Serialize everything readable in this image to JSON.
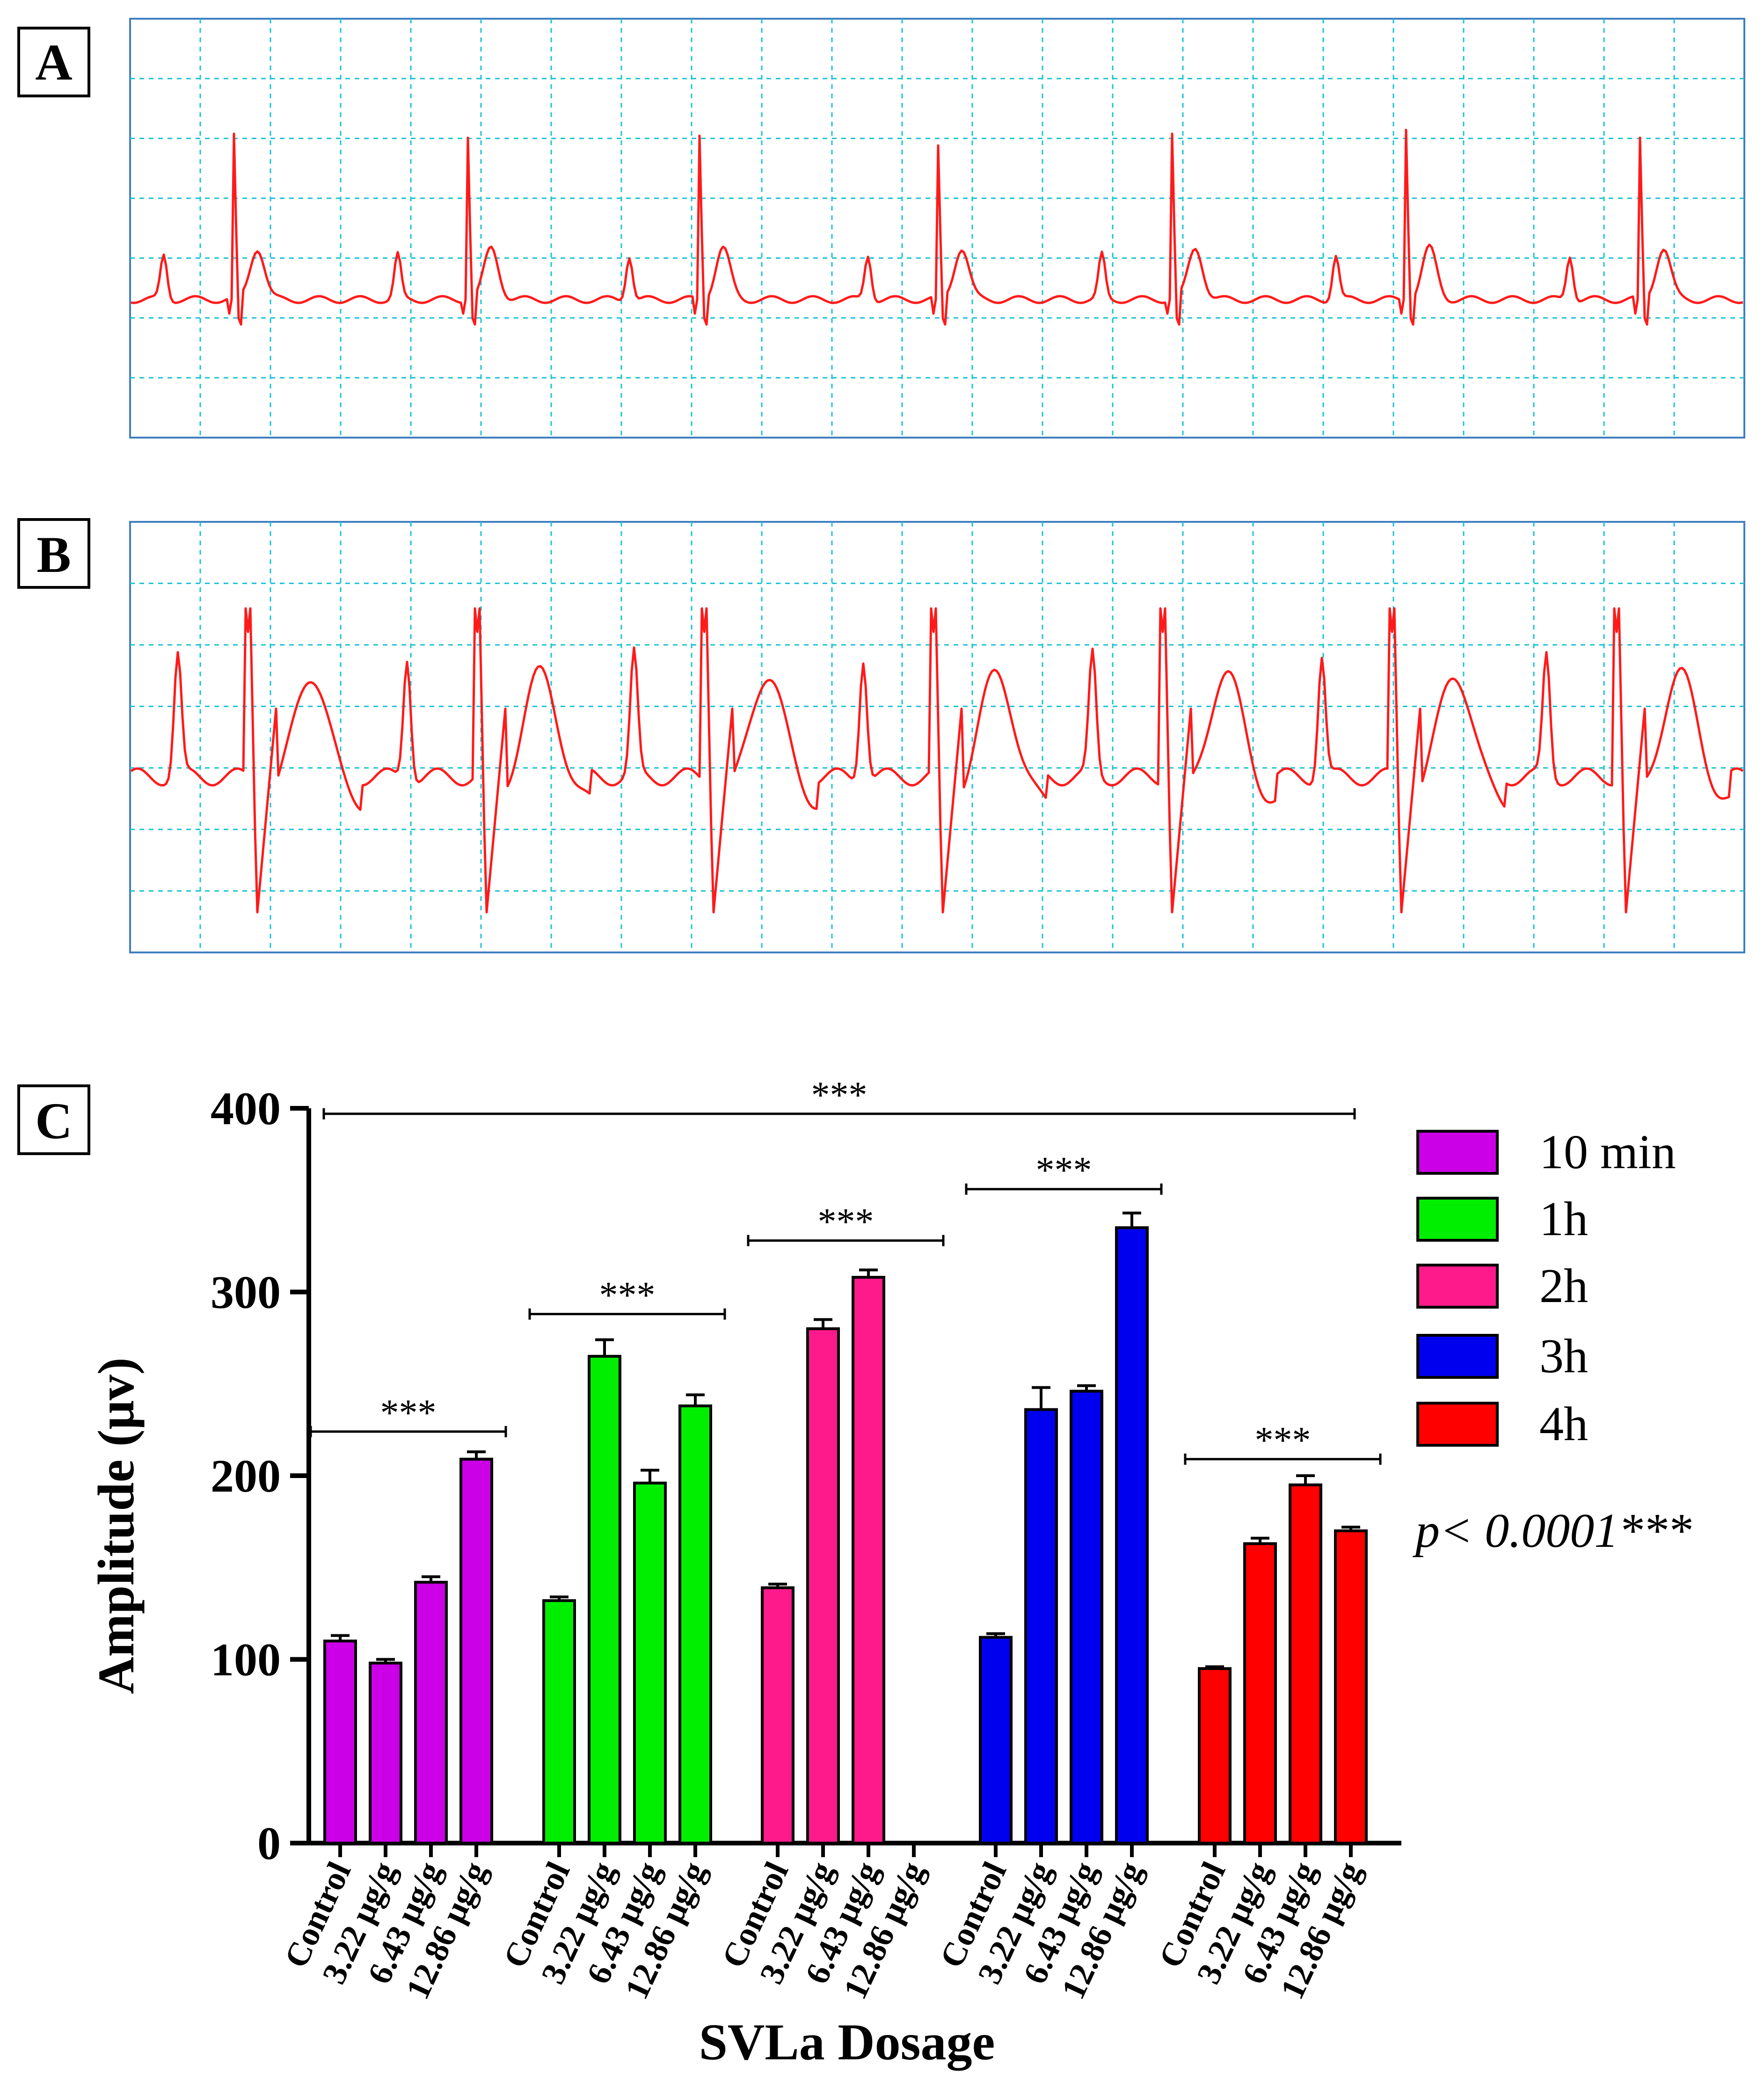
{
  "panels": {
    "a": {
      "label": "A"
    },
    "b": {
      "label": "B"
    },
    "c": {
      "label": "C"
    }
  },
  "colors": {
    "trace": "#ff1a1a",
    "grid": "#19c3d4",
    "frame": "#3f7fbf",
    "ten_min": "#cc00e6",
    "one_h": "#00ee00",
    "two_h": "#ff1a8c",
    "three_h": "#0000ee",
    "four_h": "#ff0000"
  },
  "chart_data": {
    "type": "bar",
    "ylabel": "Amplitude (μv)",
    "xlabel": "SVLa Dosage",
    "ylim": [
      0,
      400
    ],
    "yticks": [
      "0",
      "100",
      "200",
      "300",
      "400"
    ],
    "categories": [
      "Control",
      "3.22 μg/g",
      "6.43 μg/g",
      "12.86 μg/g"
    ],
    "series": [
      {
        "name": "10 min",
        "color": "#cc00e6",
        "values": [
          110,
          98,
          142,
          209
        ],
        "errors": [
          3,
          2,
          3,
          4
        ]
      },
      {
        "name": "1h",
        "color": "#00ee00",
        "values": [
          132,
          265,
          196,
          238
        ],
        "errors": [
          2,
          9,
          7,
          6
        ]
      },
      {
        "name": "2h",
        "color": "#ff1a8c",
        "values": [
          139,
          280,
          308,
          null
        ],
        "errors": [
          2,
          5,
          4,
          0
        ]
      },
      {
        "name": "3h",
        "color": "#0000ee",
        "values": [
          112,
          236,
          246,
          335
        ],
        "errors": [
          2,
          12,
          3,
          8
        ]
      },
      {
        "name": "4h",
        "color": "#ff0000",
        "values": [
          95,
          163,
          195,
          170
        ],
        "errors": [
          1,
          3,
          5,
          2
        ]
      }
    ],
    "significance": [
      {
        "label": "***",
        "scope": "10 min",
        "y": 224
      },
      {
        "label": "***",
        "scope": "1h",
        "y": 288
      },
      {
        "label": "***",
        "scope": "2h",
        "y": 328
      },
      {
        "label": "***",
        "scope": "3h",
        "y": 356
      },
      {
        "label": "***",
        "scope": "4h",
        "y": 209
      },
      {
        "label": "***",
        "scope": "all",
        "y": 397
      }
    ],
    "legend": [
      "10 min",
      "1h",
      "2h",
      "3h",
      "4h"
    ],
    "p_value": "p< 0.0001***"
  }
}
